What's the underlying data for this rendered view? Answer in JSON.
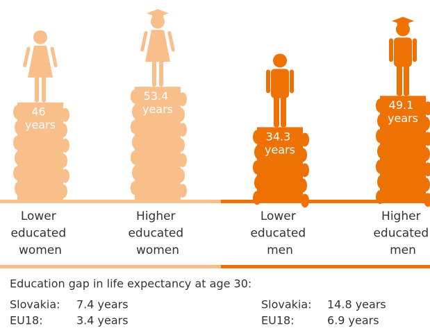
{
  "chart_data": {
    "type": "bar",
    "categories": [
      "Lower educated women",
      "Higher educated women",
      "Lower educated men",
      "Higher educated men"
    ],
    "values": [
      46,
      53.4,
      34.3,
      49.1
    ],
    "value_labels": [
      "46 years",
      "53.4 years",
      "34.3 years",
      "49.1 years"
    ],
    "colors": [
      "#f9bf8b",
      "#f9bf8b",
      "#ee7203",
      "#ee7203"
    ],
    "gap": {
      "title": "Education gap in life expectancy at age 30:",
      "women": [
        {
          "label": "Slovakia:",
          "value": "7.4 years"
        },
        {
          "label": "EU18:",
          "value": "3.4 years"
        }
      ],
      "men": [
        {
          "label": "Slovakia:",
          "value": "14.8 years"
        },
        {
          "label": "EU18:",
          "value": "6.9 years"
        }
      ]
    }
  }
}
